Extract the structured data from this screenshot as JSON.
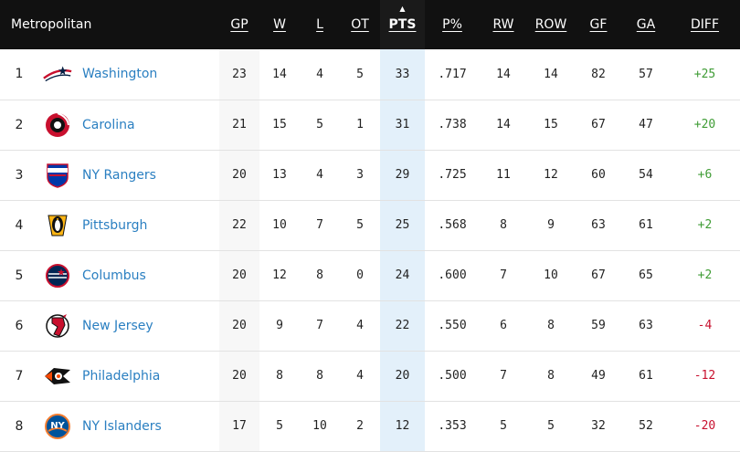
{
  "header": {
    "division": "Metropolitan",
    "columns": [
      "GP",
      "W",
      "L",
      "OT",
      "PTS",
      "P%",
      "RW",
      "ROW",
      "GF",
      "GA",
      "DIFF"
    ],
    "sorted_column": "PTS"
  },
  "colors": {
    "positive": "#3f9c35",
    "negative": "#c8102e",
    "link": "#2a7fc1",
    "highlight": "#e3f0fa"
  },
  "teams": [
    {
      "rank": "1",
      "name": "Washington",
      "logo": "capitals-logo",
      "gp": "23",
      "w": "14",
      "l": "4",
      "ot": "5",
      "pts": "33",
      "pct": ".717",
      "rw": "14",
      "row": "14",
      "gf": "82",
      "ga": "57",
      "diff": "+25"
    },
    {
      "rank": "2",
      "name": "Carolina",
      "logo": "hurricanes-logo",
      "gp": "21",
      "w": "15",
      "l": "5",
      "ot": "1",
      "pts": "31",
      "pct": ".738",
      "rw": "14",
      "row": "15",
      "gf": "67",
      "ga": "47",
      "diff": "+20"
    },
    {
      "rank": "3",
      "name": "NY Rangers",
      "logo": "rangers-logo",
      "gp": "20",
      "w": "13",
      "l": "4",
      "ot": "3",
      "pts": "29",
      "pct": ".725",
      "rw": "11",
      "row": "12",
      "gf": "60",
      "ga": "54",
      "diff": "+6"
    },
    {
      "rank": "4",
      "name": "Pittsburgh",
      "logo": "penguins-logo",
      "gp": "22",
      "w": "10",
      "l": "7",
      "ot": "5",
      "pts": "25",
      "pct": ".568",
      "rw": "8",
      "row": "9",
      "gf": "63",
      "ga": "61",
      "diff": "+2"
    },
    {
      "rank": "5",
      "name": "Columbus",
      "logo": "blue-jackets-logo",
      "gp": "20",
      "w": "12",
      "l": "8",
      "ot": "0",
      "pts": "24",
      "pct": ".600",
      "rw": "7",
      "row": "10",
      "gf": "67",
      "ga": "65",
      "diff": "+2"
    },
    {
      "rank": "6",
      "name": "New Jersey",
      "logo": "devils-logo",
      "gp": "20",
      "w": "9",
      "l": "7",
      "ot": "4",
      "pts": "22",
      "pct": ".550",
      "rw": "6",
      "row": "8",
      "gf": "59",
      "ga": "63",
      "diff": "-4"
    },
    {
      "rank": "7",
      "name": "Philadelphia",
      "logo": "flyers-logo",
      "gp": "20",
      "w": "8",
      "l": "8",
      "ot": "4",
      "pts": "20",
      "pct": ".500",
      "rw": "7",
      "row": "8",
      "gf": "49",
      "ga": "61",
      "diff": "-12"
    },
    {
      "rank": "8",
      "name": "NY Islanders",
      "logo": "islanders-logo",
      "gp": "17",
      "w": "5",
      "l": "10",
      "ot": "2",
      "pts": "12",
      "pct": ".353",
      "rw": "5",
      "row": "5",
      "gf": "32",
      "ga": "52",
      "diff": "-20"
    }
  ]
}
